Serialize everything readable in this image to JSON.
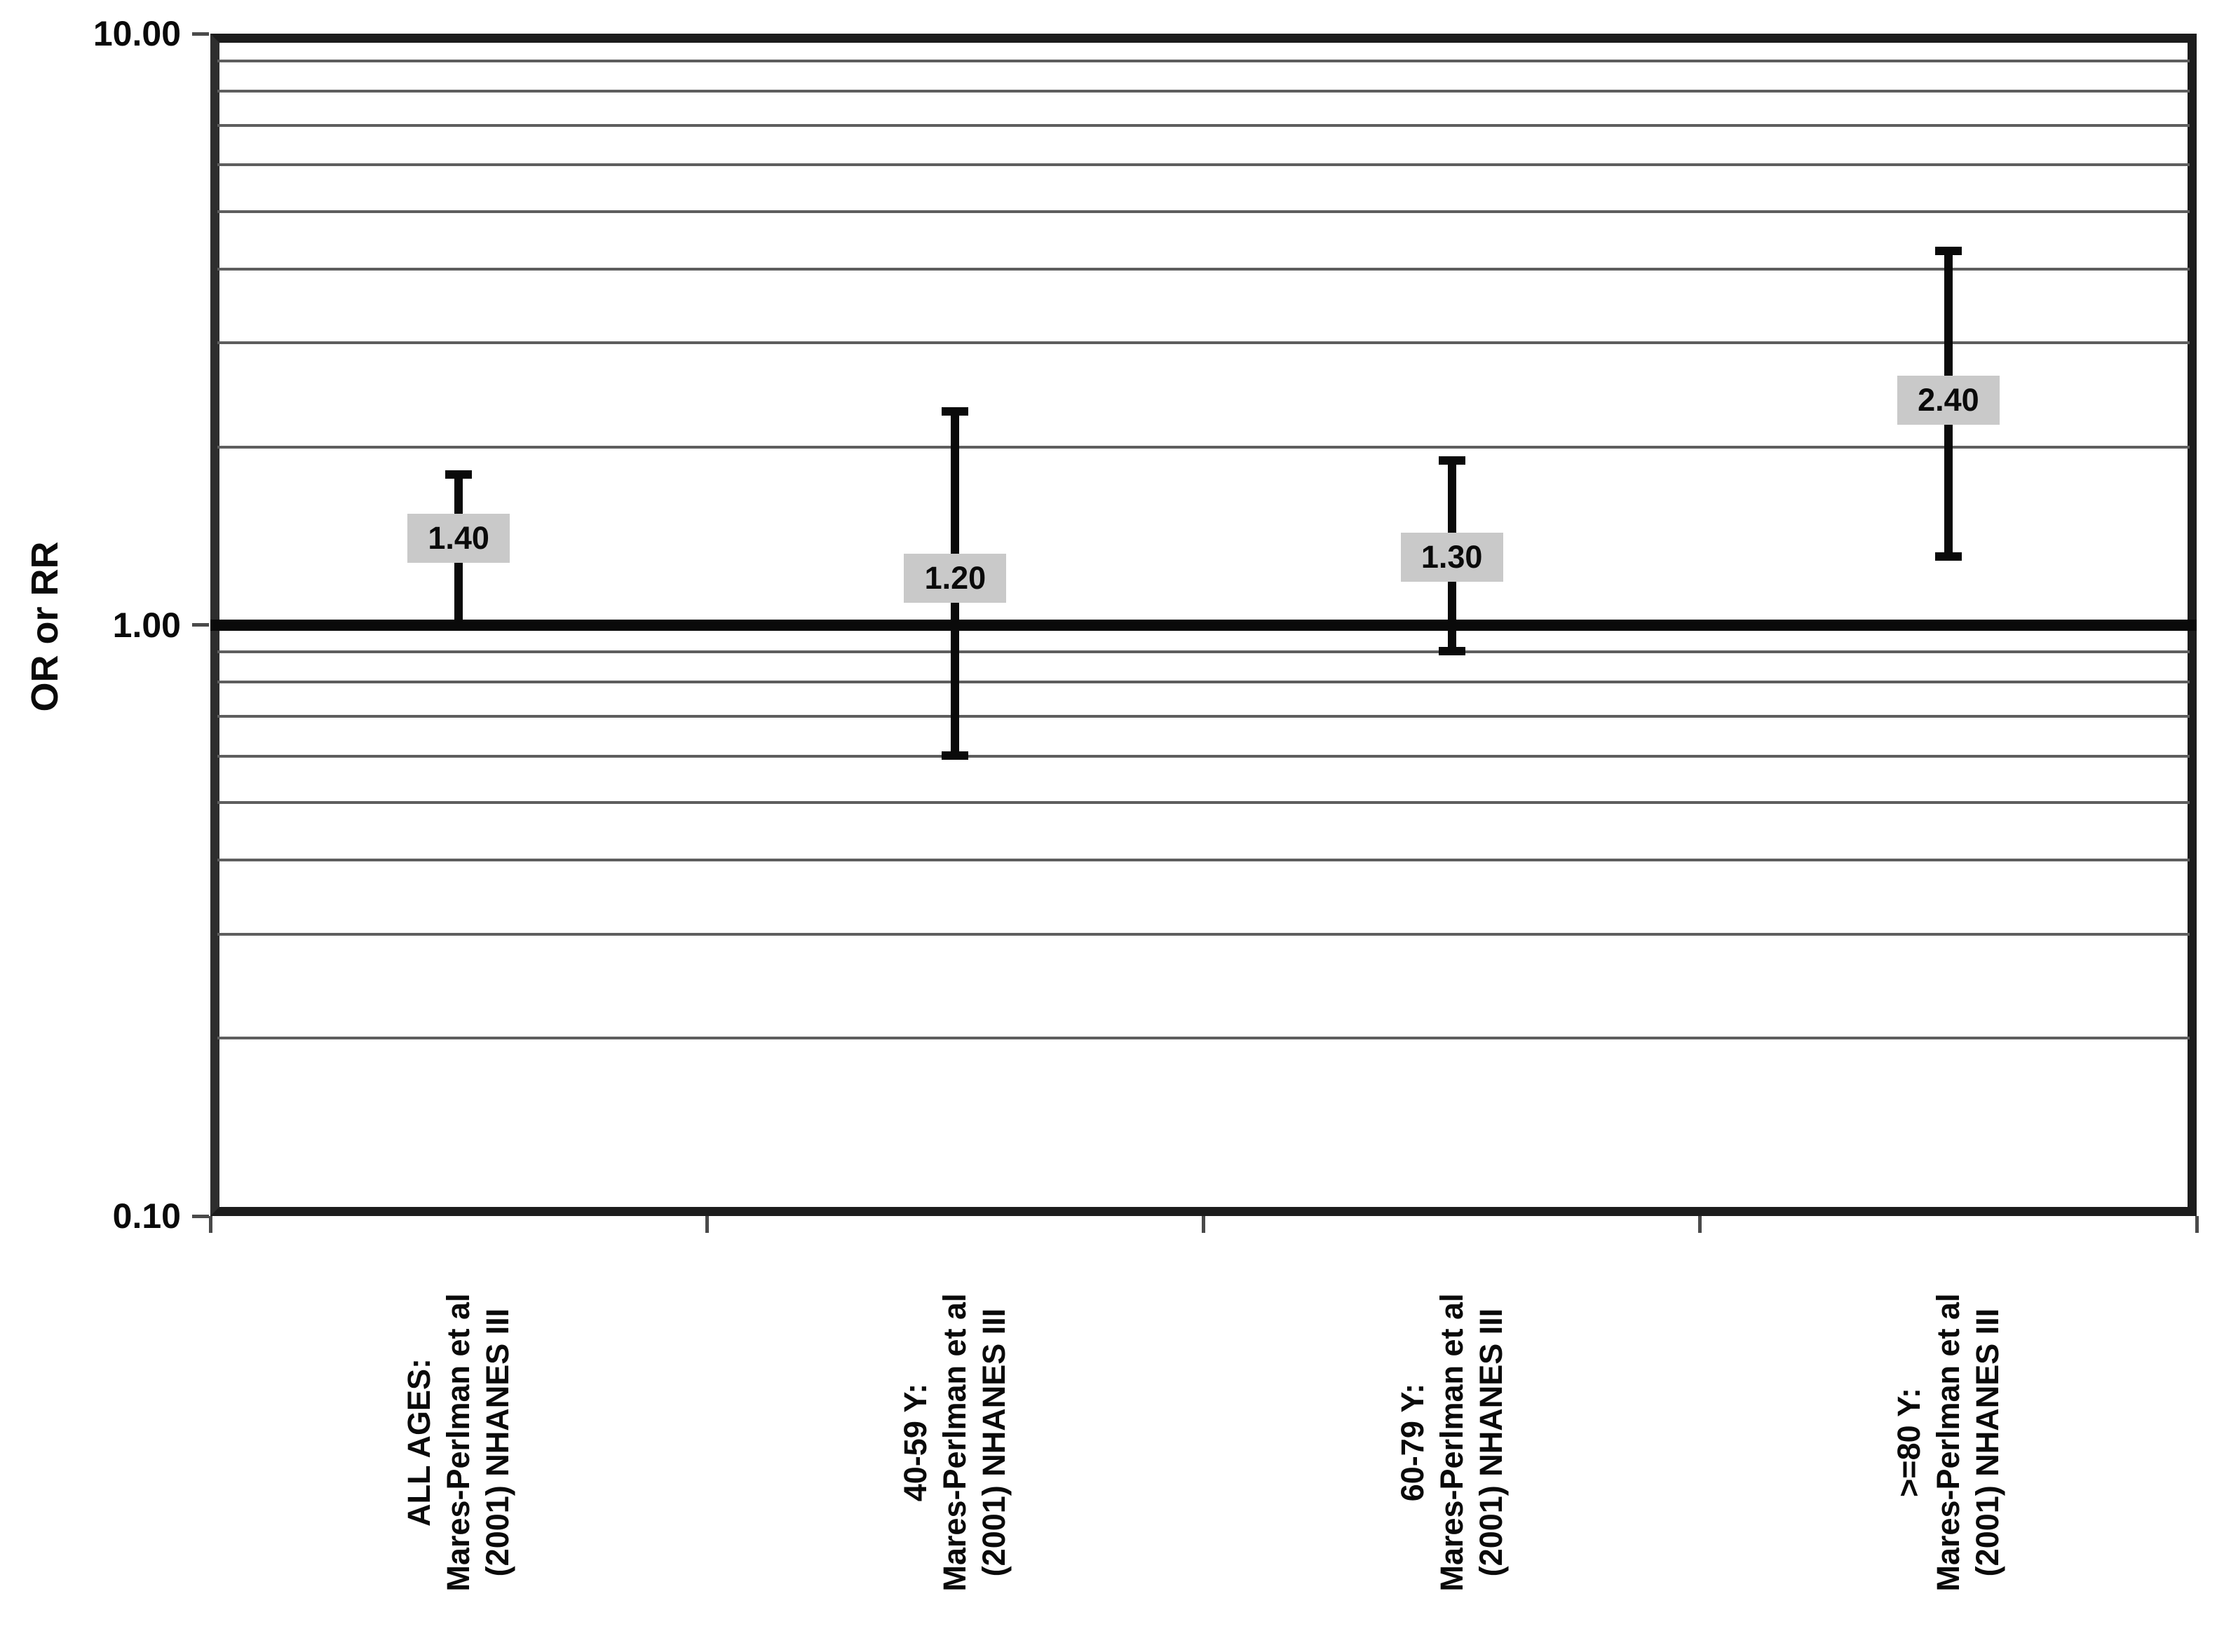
{
  "chart_data": {
    "type": "scatter",
    "subtype": "forest-plot-error-bars",
    "title": "",
    "xlabel": "",
    "ylabel": "OR or RR",
    "y_scale": "log",
    "ylim": [
      0.1,
      10.0
    ],
    "grid": true,
    "legend_position": "none",
    "reference_line": 1.0,
    "yticks": [
      {
        "value": 10.0,
        "label": "10.00"
      },
      {
        "value": 1.0,
        "label": "1.00"
      },
      {
        "value": 0.1,
        "label": "0.10"
      }
    ],
    "minor_gridlines": [
      0.2,
      0.3,
      0.4,
      0.5,
      0.6,
      0.7,
      0.8,
      0.9,
      2,
      3,
      4,
      5,
      6,
      7,
      8,
      9
    ],
    "categories": [
      {
        "lines": [
          "ALL AGES:",
          "Mares-Perlman et al",
          "(2001) NHANES III"
        ]
      },
      {
        "lines": [
          "40-59 Y:",
          "Mares-Perlman et al",
          "(2001) NHANES III"
        ]
      },
      {
        "lines": [
          "60-79 Y:",
          "Mares-Perlman et al",
          "(2001) NHANES III"
        ]
      },
      {
        "lines": [
          ">=80 Y:",
          "Mares-Perlman et al",
          "(2001) NHANES III"
        ]
      }
    ],
    "series": [
      {
        "name": "Mares-Perlman et al (2001) NHANES III",
        "points": [
          {
            "category": "ALL AGES:",
            "estimate": 1.4,
            "label": "1.40",
            "ci_low": 1.0,
            "ci_high": 1.8
          },
          {
            "category": "40-59 Y:",
            "estimate": 1.2,
            "label": "1.20",
            "ci_low": 0.6,
            "ci_high": 2.3
          },
          {
            "category": "60-79 Y:",
            "estimate": 1.3,
            "label": "1.30",
            "ci_low": 0.9,
            "ci_high": 1.9
          },
          {
            "category": ">=80 Y:",
            "estimate": 2.4,
            "label": "2.40",
            "ci_low": 1.3,
            "ci_high": 4.3
          }
        ]
      }
    ]
  },
  "colors": {
    "background": "#ffffff",
    "axis_border": "#1c1c1c",
    "gridline": "#5e5e5e",
    "reference_line": "#0a0a0a",
    "error_bar": "#0a0a0a",
    "point_label_bg": "#c9c9c9",
    "text": "#0a0a0a"
  }
}
